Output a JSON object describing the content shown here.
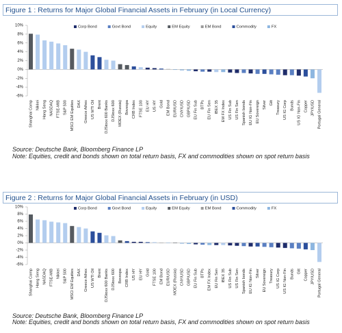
{
  "chart_data": [
    {
      "type": "bar",
      "title": "Figure 1 : Returns for Major Global Financial Assets in February (in Local Currency)",
      "source": "Source: Deutsche Bank, Bloomberg Finance LP",
      "note": "Note: Equities, credit and bonds shown on total return basis, FX and commodities shown on spot return basis",
      "legend": "top",
      "categories": [
        "Shanghai Comp",
        "Nikkei",
        "Hang Seng",
        "NASDAQ",
        "FTSE-MIB",
        "S&P 500",
        "MSCI EM Equities",
        "DAX",
        "Greece Athex",
        "US WTI Oil",
        "Brent",
        "DJStoxx 600 Banks",
        "DJStoxx 600",
        "MOEX (Russia)",
        "Bovespa",
        "CRB Index",
        "FTSE 100",
        "EU HY",
        "US HY",
        "Gold",
        "EM Bond",
        "EUR/USD",
        "CNY/USD",
        "GBP/USD",
        "EU Fin Sub",
        "BTPs",
        "EU Fin Sen",
        "IBEX 35",
        "EM FX Index",
        "US Fin Sub",
        "US Fin Sen",
        "Spanish bonds",
        "EU IG Non-Fin",
        "EU Sovereign",
        "Silver",
        "Gilt",
        "Treasury",
        "US IG Corp",
        "Bunds",
        "US IG Non-Fin",
        "Copper",
        "JPY/USD",
        "Portugal General"
      ],
      "ylim": [
        -6,
        10
      ],
      "yticks": [
        {
          "value": 10,
          "label": "10%"
        },
        {
          "value": 8,
          "label": "8%"
        },
        {
          "value": 6,
          "label": "6%"
        },
        {
          "value": 4,
          "label": "4%"
        },
        {
          "value": 2,
          "label": "2%"
        },
        {
          "value": 0,
          "label": "0%"
        },
        {
          "value": -2,
          "label": "-2%"
        },
        {
          "value": -4,
          "label": "-4%"
        },
        {
          "value": -6,
          "label": "-6%"
        }
      ],
      "series": [
        {
          "name": "Corp Bond",
          "color": "#1f2d6b",
          "values": [
            null,
            null,
            null,
            null,
            null,
            null,
            null,
            null,
            null,
            null,
            null,
            null,
            null,
            null,
            null,
            null,
            null,
            0.4,
            0.3,
            null,
            null,
            null,
            null,
            null,
            -0.4,
            null,
            -0.5,
            null,
            null,
            -0.7,
            -0.8,
            null,
            -0.9,
            null,
            null,
            null,
            null,
            -1.3,
            null,
            -1.4,
            null,
            null,
            null
          ]
        },
        {
          "name": "Govt Bond",
          "color": "#5a7fc2",
          "values": [
            null,
            null,
            null,
            null,
            null,
            null,
            null,
            null,
            null,
            null,
            null,
            null,
            null,
            null,
            null,
            null,
            null,
            null,
            null,
            null,
            null,
            null,
            null,
            null,
            null,
            -0.5,
            null,
            null,
            null,
            null,
            null,
            -0.8,
            null,
            -1.0,
            null,
            -1.1,
            -1.2,
            null,
            -1.3,
            null,
            null,
            null,
            null
          ]
        },
        {
          "name": "Equity",
          "color": "#b3cdee",
          "values": [
            null,
            7.9,
            6.6,
            6.3,
            5.9,
            5.5,
            null,
            4.5,
            4.0,
            null,
            null,
            2.2,
            2.0,
            null,
            null,
            null,
            0.5,
            null,
            null,
            null,
            null,
            null,
            null,
            null,
            null,
            null,
            null,
            -0.6,
            null,
            null,
            null,
            null,
            null,
            null,
            null,
            null,
            null,
            null,
            null,
            null,
            null,
            null,
            -5.3
          ]
        },
        {
          "name": "EM Equity",
          "color": "#555a60",
          "values": [
            8.1,
            null,
            null,
            null,
            null,
            null,
            4.7,
            null,
            null,
            null,
            null,
            null,
            null,
            1.2,
            1.0,
            null,
            null,
            null,
            null,
            null,
            null,
            null,
            null,
            null,
            null,
            null,
            null,
            null,
            null,
            null,
            null,
            null,
            null,
            null,
            null,
            null,
            null,
            null,
            null,
            null,
            null,
            null,
            null
          ]
        },
        {
          "name": "EM Bond",
          "color": "#9a9a9a",
          "values": [
            null,
            null,
            null,
            null,
            null,
            null,
            null,
            null,
            null,
            null,
            null,
            null,
            null,
            null,
            null,
            null,
            null,
            null,
            null,
            null,
            0.1,
            null,
            null,
            null,
            null,
            null,
            null,
            null,
            null,
            null,
            null,
            null,
            null,
            null,
            null,
            null,
            null,
            null,
            null,
            null,
            null,
            null,
            null
          ]
        },
        {
          "name": "Commodity",
          "color": "#2c4f9c",
          "values": [
            null,
            null,
            null,
            null,
            null,
            null,
            null,
            null,
            null,
            3.2,
            2.8,
            null,
            null,
            null,
            null,
            0.7,
            null,
            null,
            null,
            0.2,
            null,
            null,
            null,
            null,
            null,
            null,
            null,
            null,
            null,
            null,
            null,
            null,
            null,
            null,
            -1.0,
            null,
            null,
            null,
            null,
            null,
            -1.6,
            null,
            null
          ]
        },
        {
          "name": "FX",
          "color": "#8db6e0",
          "values": [
            null,
            null,
            null,
            null,
            null,
            null,
            null,
            null,
            null,
            null,
            null,
            null,
            null,
            null,
            null,
            null,
            null,
            null,
            null,
            null,
            null,
            -0.1,
            -0.2,
            -0.3,
            null,
            null,
            null,
            null,
            -0.6,
            null,
            null,
            null,
            null,
            null,
            null,
            null,
            null,
            null,
            null,
            null,
            null,
            -2.0,
            null
          ]
        }
      ]
    },
    {
      "type": "bar",
      "title": "Figure 2 : Returns for Major Global Financial Assets in February (in USD)",
      "source": "Source: Deutsche Bank, Bloomberg Finance LP",
      "note": "Note: Equities, credit and bonds shown on total return basis, FX and commodities shown on spot return basis",
      "legend": "top",
      "categories": [
        "Shanghai Comp",
        "Hang Seng",
        "NASDAQ",
        "FTSE-MIB",
        "Nikkei",
        "S&P 500",
        "MSCI EM Equities",
        "DAX",
        "Greece Athex",
        "US WTI Oil",
        "Brent",
        "DJStoxx 600 Banks",
        "DJStoxx 600",
        "Bovespa",
        "CRB Index",
        "US HY",
        "EU HY",
        "Gold",
        "FTSE 100",
        "EM Bond",
        "EUR/USD",
        "MOEX (Russia)",
        "CNY/USD",
        "GBP/USD",
        "EU Fin Sub",
        "BTPs",
        "EM FX Index",
        "EU Fin Sen",
        "IBEX 35",
        "US Fin Sub",
        "US Fin Sen",
        "Spanish bonds",
        "EU IG Non-Fin",
        "Silver",
        "EU Sovereign",
        "Treasury",
        "US IG Corp",
        "US IG Non-Fin",
        "Bunds",
        "Gilt",
        "Copper",
        "JPY/USD",
        "Portugal General"
      ],
      "ylim": [
        -6,
        10
      ],
      "yticks": [
        {
          "value": 10,
          "label": "10%"
        },
        {
          "value": 8,
          "label": "8%"
        },
        {
          "value": 6,
          "label": "6%"
        },
        {
          "value": 4,
          "label": "4%"
        },
        {
          "value": 2,
          "label": "2%"
        },
        {
          "value": 0,
          "label": "0%"
        },
        {
          "value": -2,
          "label": "-2%"
        },
        {
          "value": -4,
          "label": "-4%"
        },
        {
          "value": -6,
          "label": "-6%"
        }
      ],
      "series": [
        {
          "name": "Corp Bond",
          "color": "#1f2d6b",
          "values": [
            null,
            null,
            null,
            null,
            null,
            null,
            null,
            null,
            null,
            null,
            null,
            null,
            null,
            null,
            null,
            0.3,
            0.3,
            null,
            null,
            null,
            null,
            null,
            null,
            null,
            -0.4,
            null,
            null,
            -0.6,
            null,
            -0.7,
            -0.8,
            null,
            -1.0,
            null,
            null,
            null,
            -1.3,
            -1.4,
            null,
            null,
            null,
            null,
            null
          ]
        },
        {
          "name": "Govt Bond",
          "color": "#5a7fc2",
          "values": [
            null,
            null,
            null,
            null,
            null,
            null,
            null,
            null,
            null,
            null,
            null,
            null,
            null,
            null,
            null,
            null,
            null,
            null,
            null,
            null,
            null,
            null,
            null,
            null,
            null,
            -0.5,
            null,
            null,
            null,
            null,
            null,
            -0.9,
            null,
            null,
            -1.1,
            -1.2,
            null,
            null,
            -1.5,
            -1.6,
            null,
            null,
            null
          ]
        },
        {
          "name": "Equity",
          "color": "#b3cdee",
          "values": [
            null,
            6.5,
            6.3,
            5.9,
            5.7,
            5.5,
            null,
            4.4,
            4.0,
            null,
            null,
            2.1,
            1.9,
            null,
            null,
            null,
            null,
            null,
            0.2,
            null,
            null,
            null,
            null,
            null,
            null,
            null,
            null,
            null,
            -0.6,
            null,
            null,
            null,
            null,
            null,
            null,
            null,
            null,
            null,
            null,
            null,
            null,
            null,
            -5.3
          ]
        },
        {
          "name": "EM Equity",
          "color": "#555a60",
          "values": [
            7.9,
            null,
            null,
            null,
            null,
            null,
            4.7,
            null,
            null,
            null,
            null,
            null,
            null,
            0.7,
            null,
            null,
            null,
            null,
            null,
            null,
            null,
            0.1,
            null,
            null,
            null,
            null,
            null,
            null,
            null,
            null,
            null,
            null,
            null,
            null,
            null,
            null,
            null,
            null,
            null,
            null,
            null,
            null,
            null
          ]
        },
        {
          "name": "EM Bond",
          "color": "#9a9a9a",
          "values": [
            null,
            null,
            null,
            null,
            null,
            null,
            null,
            null,
            null,
            null,
            null,
            null,
            null,
            null,
            null,
            null,
            null,
            null,
            null,
            0.1,
            null,
            null,
            null,
            null,
            null,
            null,
            null,
            null,
            null,
            null,
            null,
            null,
            null,
            null,
            null,
            null,
            null,
            null,
            null,
            null,
            null,
            null,
            null
          ]
        },
        {
          "name": "Commodity",
          "color": "#2c4f9c",
          "values": [
            null,
            null,
            null,
            null,
            null,
            null,
            null,
            null,
            null,
            3.2,
            2.8,
            null,
            null,
            null,
            0.5,
            null,
            null,
            0.2,
            null,
            null,
            null,
            null,
            null,
            null,
            null,
            null,
            null,
            null,
            null,
            null,
            null,
            null,
            null,
            -1.0,
            null,
            null,
            null,
            null,
            null,
            null,
            -1.8,
            null,
            null
          ]
        },
        {
          "name": "FX",
          "color": "#8db6e0",
          "values": [
            null,
            null,
            null,
            null,
            null,
            null,
            null,
            null,
            null,
            null,
            null,
            null,
            null,
            null,
            null,
            null,
            null,
            null,
            null,
            null,
            0.1,
            null,
            -0.2,
            -0.3,
            null,
            null,
            -0.6,
            null,
            null,
            null,
            null,
            null,
            null,
            null,
            null,
            null,
            null,
            null,
            null,
            null,
            null,
            -2.0,
            null
          ]
        }
      ]
    }
  ]
}
